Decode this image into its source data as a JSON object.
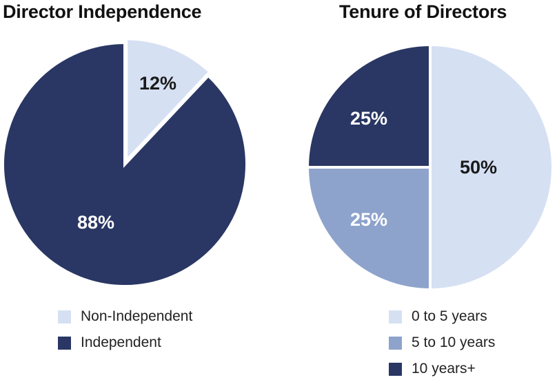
{
  "chart_data": [
    {
      "type": "pie",
      "title": "Director Independence",
      "slices": [
        {
          "label": "Non-Independent",
          "value": 12,
          "display": "12%",
          "color": "#d6e0f3",
          "text_color": "#1a1a1a"
        },
        {
          "label": "Independent",
          "value": 88,
          "display": "88%",
          "color": "#2a3764",
          "text_color": "#ffffff"
        }
      ],
      "legend": [
        "Non-Independent",
        "Independent"
      ],
      "legend_position": "bottom"
    },
    {
      "type": "pie",
      "title": "Tenure of Directors",
      "slices": [
        {
          "label": "0 to 5 years",
          "value": 50,
          "display": "50%",
          "color": "#d6e0f3",
          "text_color": "#1a1a1a"
        },
        {
          "label": "5 to 10 years",
          "value": 25,
          "display": "25%",
          "color": "#8ea3cb",
          "text_color": "#ffffff"
        },
        {
          "label": "10 years+",
          "value": 25,
          "display": "25%",
          "color": "#2a3764",
          "text_color": "#ffffff"
        }
      ],
      "legend": [
        "0 to 5 years",
        "5 to 10 years",
        "10 years+"
      ],
      "legend_position": "bottom"
    }
  ]
}
